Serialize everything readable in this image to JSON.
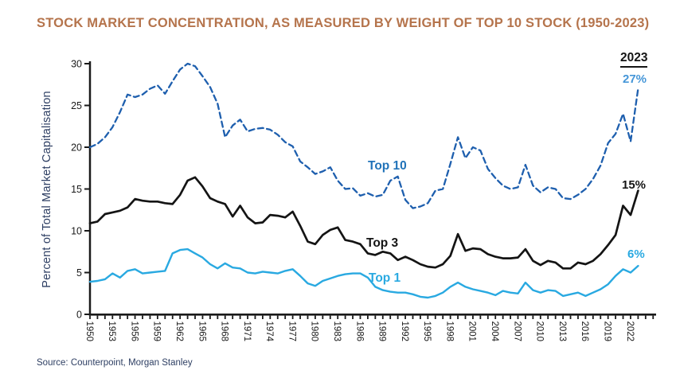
{
  "header": {
    "title": "STOCK MARKET CONCENTRATION, AS MEASURED BY WEIGHT OF TOP 10 STOCK (1950-2023)"
  },
  "footer": {
    "source": "Source: Counterpoint, Morgan Stanley"
  },
  "series_labels": {
    "top10": "Top 10",
    "top3": "Top 3",
    "top1": "Top 1"
  },
  "annotations": {
    "year": "2023",
    "top10_pct": "27%",
    "top3_pct": "15%",
    "top1_pct": "6%"
  },
  "colors": {
    "title": "#b5744c",
    "top10_line": "#1e5fae",
    "top10_label": "#2173b9",
    "top10_value": "#4596d8",
    "top3_line": "#141414",
    "top1_line": "#29a9e1",
    "axis": "#1a1a1a",
    "y_axis_title": "#2e3f63",
    "source_text": "#2e3f63"
  },
  "chart_data": {
    "type": "line",
    "title": "STOCK MARKET CONCENTRATION, AS MEASURED BY WEIGHT OF TOP 10 STOCK (1950-2023)",
    "xlabel": "",
    "ylabel": "Percent of Total Market Capitalisation",
    "ylim": [
      0,
      30
    ],
    "yticks": [
      0,
      5,
      10,
      15,
      20,
      25,
      30
    ],
    "x_start": 1950,
    "x_end": 2023,
    "xtick_labels": [
      "1950",
      "1953",
      "1956",
      "1959",
      "1962",
      "1965",
      "1968",
      "1971",
      "1974",
      "1977",
      "1980",
      "1983",
      "1986",
      "1989",
      "1992",
      "1995",
      "1998",
      "2001",
      "2004",
      "2007",
      "2010",
      "2013",
      "2016",
      "2019",
      "2022"
    ],
    "grid": false,
    "legend_position": "inline-labels",
    "annotation_year": "2023",
    "series": [
      {
        "name": "Top 10",
        "line_style": "dashed",
        "color": "#1e5fae",
        "end_label": "27%",
        "values": [
          20.0,
          20.4,
          21.2,
          22.4,
          24.2,
          26.3,
          26.0,
          26.3,
          27.0,
          27.4,
          26.4,
          27.9,
          29.3,
          30.0,
          29.7,
          28.5,
          27.2,
          25.2,
          21.2,
          22.6,
          23.3,
          21.9,
          22.2,
          22.3,
          22.1,
          21.5,
          20.6,
          20.1,
          18.3,
          17.6,
          16.8,
          17.1,
          17.6,
          16.0,
          15.0,
          15.1,
          14.2,
          14.5,
          14.1,
          14.3,
          16.0,
          16.5,
          13.7,
          12.7,
          12.9,
          13.3,
          14.8,
          15.0,
          18.0,
          21.2,
          18.7,
          20.0,
          19.6,
          17.4,
          16.3,
          15.4,
          15.0,
          15.2,
          17.9,
          15.4,
          14.6,
          15.2,
          15.0,
          13.9,
          13.8,
          14.3,
          15.0,
          16.2,
          17.8,
          20.5,
          21.6,
          24.0,
          20.7,
          27.0
        ]
      },
      {
        "name": "Top 3",
        "line_style": "solid",
        "color": "#141414",
        "end_label": "15%",
        "values": [
          10.9,
          11.1,
          12.0,
          12.2,
          12.4,
          12.8,
          13.8,
          13.6,
          13.5,
          13.5,
          13.3,
          13.2,
          14.3,
          16.0,
          16.4,
          15.3,
          13.9,
          13.5,
          13.2,
          11.7,
          13.0,
          11.6,
          10.9,
          11.0,
          11.9,
          11.8,
          11.6,
          12.3,
          10.6,
          8.7,
          8.4,
          9.5,
          10.1,
          10.4,
          8.9,
          8.7,
          8.4,
          7.3,
          7.1,
          7.5,
          7.3,
          6.5,
          6.9,
          6.5,
          6.0,
          5.7,
          5.6,
          6.0,
          7.0,
          9.6,
          7.6,
          7.9,
          7.8,
          7.2,
          6.9,
          6.7,
          6.7,
          6.8,
          7.8,
          6.4,
          5.9,
          6.4,
          6.2,
          5.5,
          5.5,
          6.2,
          6.0,
          6.4,
          7.2,
          8.3,
          9.5,
          13.0,
          11.9,
          14.8
        ]
      },
      {
        "name": "Top 1",
        "line_style": "solid",
        "color": "#29a9e1",
        "end_label": "6%",
        "values": [
          3.9,
          4.0,
          4.2,
          4.9,
          4.4,
          5.2,
          5.4,
          4.9,
          5.0,
          5.1,
          5.2,
          7.3,
          7.7,
          7.8,
          7.3,
          6.8,
          6.0,
          5.5,
          6.1,
          5.6,
          5.5,
          5.0,
          4.9,
          5.1,
          5.0,
          4.9,
          5.2,
          5.4,
          4.6,
          3.7,
          3.4,
          4.0,
          4.3,
          4.6,
          4.8,
          4.9,
          4.9,
          4.4,
          3.3,
          2.9,
          2.7,
          2.6,
          2.6,
          2.4,
          2.1,
          2.0,
          2.2,
          2.6,
          3.3,
          3.8,
          3.3,
          3.0,
          2.8,
          2.6,
          2.3,
          2.8,
          2.6,
          2.5,
          3.8,
          2.9,
          2.6,
          2.9,
          2.8,
          2.2,
          2.4,
          2.6,
          2.2,
          2.6,
          3.0,
          3.6,
          4.6,
          5.4,
          5.0,
          5.8
        ]
      }
    ]
  }
}
